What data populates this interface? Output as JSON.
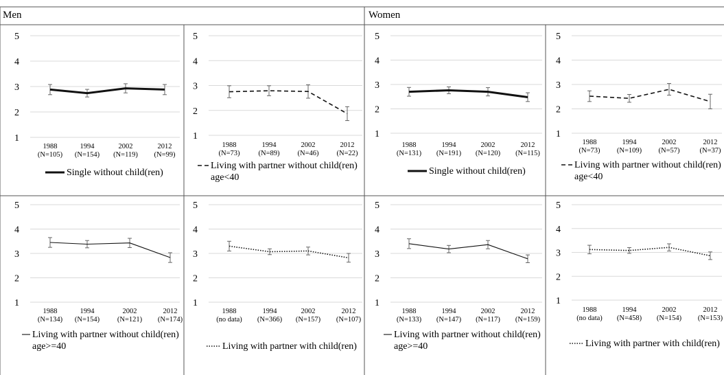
{
  "headers": {
    "men": "Men",
    "women": "Women"
  },
  "chart_data": [
    {
      "group": "Men",
      "type": "line",
      "line_style": "thick",
      "legend": [
        "Single without child(ren)"
      ],
      "x": [
        "1988",
        "1994",
        "2002",
        "2012"
      ],
      "n": [
        "(N=105)",
        "(N=154)",
        "(N=119)",
        "(N=99)"
      ],
      "values": [
        2.88,
        2.74,
        2.93,
        2.88
      ],
      "errors": [
        0.2,
        0.15,
        0.18,
        0.2
      ],
      "ylim": [
        1,
        5
      ],
      "yticks": [
        "1",
        "2",
        "3",
        "4",
        "5"
      ],
      "grid": true
    },
    {
      "group": "Men",
      "type": "line",
      "line_style": "dashed",
      "legend": [
        "Living with partner without child(ren)",
        "age<40"
      ],
      "x": [
        "1988",
        "1994",
        "2002",
        "2012"
      ],
      "n": [
        "(N=73)",
        "(N=89)",
        "(N=46)",
        "(N=22)"
      ],
      "values": [
        2.75,
        2.79,
        2.76,
        1.87
      ],
      "errors": [
        0.24,
        0.2,
        0.27,
        0.28
      ],
      "ylim": [
        1,
        5
      ],
      "yticks": [
        "1",
        "2",
        "3",
        "4",
        "5"
      ],
      "grid": true
    },
    {
      "group": "Women",
      "type": "line",
      "line_style": "thick",
      "legend": [
        "Single without child(ren)"
      ],
      "x": [
        "1988",
        "1994",
        "2002",
        "2012"
      ],
      "n": [
        "(N=131)",
        "(N=191)",
        "(N=120)",
        "(N=115)"
      ],
      "values": [
        2.7,
        2.76,
        2.7,
        2.48
      ],
      "errors": [
        0.18,
        0.14,
        0.17,
        0.18
      ],
      "ylim": [
        1,
        5
      ],
      "yticks": [
        "1",
        "2",
        "3",
        "4",
        "5"
      ],
      "grid": true
    },
    {
      "group": "Women",
      "type": "line",
      "line_style": "dashed",
      "legend": [
        "Living with partner without child(ren)",
        "age<40"
      ],
      "x": [
        "1988",
        "1994",
        "2002",
        "2012"
      ],
      "n": [
        "(N=73)",
        "(N=109)",
        "(N=57)",
        "(N=37)"
      ],
      "values": [
        2.52,
        2.43,
        2.8,
        2.3
      ],
      "errors": [
        0.22,
        0.16,
        0.24,
        0.3
      ],
      "ylim": [
        1,
        5
      ],
      "yticks": [
        "1",
        "2",
        "3",
        "4",
        "5"
      ],
      "grid": true
    },
    {
      "group": "Men",
      "type": "line",
      "line_style": "thin",
      "legend": [
        "Living with partner without child(ren)",
        "age>=40"
      ],
      "x": [
        "1988",
        "1994",
        "2002",
        "2012"
      ],
      "n": [
        "(N=134)",
        "(N=154)",
        "(N=121)",
        "(N=174)"
      ],
      "values": [
        3.45,
        3.38,
        3.43,
        2.83
      ],
      "errors": [
        0.2,
        0.15,
        0.19,
        0.2
      ],
      "ylim": [
        1,
        5
      ],
      "yticks": [
        "1",
        "2",
        "3",
        "4",
        "5"
      ],
      "grid": true
    },
    {
      "group": "Men",
      "type": "line",
      "line_style": "dotted",
      "legend": [
        "Living with partner with child(ren)"
      ],
      "x": [
        "1988",
        "1994",
        "2002",
        "2012"
      ],
      "n": [
        "(no data)",
        "(N=366)",
        "(N=157)",
        "(N=107)"
      ],
      "values": [
        3.3,
        3.07,
        3.1,
        2.82
      ],
      "errors": [
        0.2,
        0.12,
        0.16,
        0.18
      ],
      "ylim": [
        1,
        5
      ],
      "yticks": [
        "1",
        "2",
        "3",
        "4",
        "5"
      ],
      "grid": true
    },
    {
      "group": "Women",
      "type": "line",
      "line_style": "thin",
      "legend": [
        "Living with partner without child(ren)",
        "age>=40"
      ],
      "x": [
        "1988",
        "1994",
        "2002",
        "2012"
      ],
      "n": [
        "(N=133)",
        "(N=147)",
        "(N=117)",
        "(N=159)"
      ],
      "values": [
        3.4,
        3.18,
        3.36,
        2.78
      ],
      "errors": [
        0.2,
        0.15,
        0.17,
        0.16
      ],
      "ylim": [
        1,
        5
      ],
      "yticks": [
        "1",
        "2",
        "3",
        "4",
        "5"
      ],
      "grid": true
    },
    {
      "group": "Women",
      "type": "line",
      "line_style": "dotted",
      "legend": [
        "Living with partner with child(ren)"
      ],
      "x": [
        "1988",
        "1994",
        "2002",
        "2012"
      ],
      "n": [
        "(no data)",
        "(N=458)",
        "(N=154)",
        "(N=153)"
      ],
      "values": [
        3.12,
        3.08,
        3.21,
        2.86
      ],
      "errors": [
        0.18,
        0.12,
        0.15,
        0.16
      ],
      "ylim": [
        1,
        5
      ],
      "yticks": [
        "1",
        "2",
        "3",
        "4",
        "5"
      ],
      "grid": true
    }
  ]
}
